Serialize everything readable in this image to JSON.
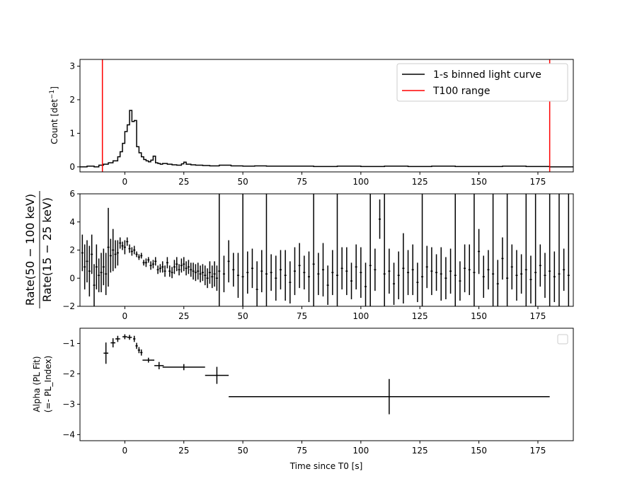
{
  "chart_data": [
    {
      "type": "line",
      "panel": "light-curve",
      "ylabel": "Count [det$^{-1}$]",
      "ylabel_main": "Count [det",
      "ylabel_sup": "−1",
      "ylabel_close": "]",
      "xlim": [
        -19,
        190
      ],
      "ylim": [
        -0.15,
        3.2
      ],
      "xticks": [
        0,
        25,
        50,
        75,
        100,
        125,
        150,
        175
      ],
      "xtick_labels": [
        "0",
        "25",
        "50",
        "75",
        "100",
        "125",
        "150",
        "175"
      ],
      "yticks": [
        0,
        1,
        2,
        3
      ],
      "ytick_labels": [
        "0",
        "1",
        "2",
        "3"
      ],
      "legend_position": "top-right",
      "series": [
        {
          "name": "1-s binned light curve",
          "color": "#000000",
          "x": [
            -19,
            -16,
            -13,
            -11,
            -9,
            -7,
            -5,
            -3,
            -2,
            -1,
            0,
            1,
            2,
            3,
            4,
            5,
            6,
            7,
            8,
            9,
            10,
            11,
            12,
            13,
            14,
            15,
            16,
            18,
            20,
            22,
            24,
            25,
            26,
            28,
            30,
            33,
            36,
            40,
            45,
            50,
            55,
            60,
            70,
            80,
            90,
            100,
            110,
            120,
            130,
            140,
            150,
            160,
            170,
            180,
            190
          ],
          "values": [
            0.0,
            0.02,
            0.0,
            0.05,
            0.08,
            0.12,
            0.18,
            0.3,
            0.45,
            0.7,
            1.05,
            1.25,
            1.68,
            1.35,
            1.38,
            0.6,
            0.42,
            0.3,
            0.22,
            0.18,
            0.15,
            0.2,
            0.32,
            0.12,
            0.1,
            0.08,
            0.1,
            0.08,
            0.06,
            0.05,
            0.09,
            0.14,
            0.08,
            0.06,
            0.05,
            0.04,
            0.03,
            0.05,
            0.03,
            0.02,
            0.03,
            0.02,
            0.02,
            0.01,
            0.02,
            0.01,
            0.02,
            0.01,
            0.02,
            0.01,
            0.01,
            0.02,
            0.01,
            0.0,
            0.0
          ]
        },
        {
          "name": "T100 range",
          "color": "#ff0000",
          "vlines": [
            -9.5,
            180
          ]
        }
      ]
    },
    {
      "type": "scatter",
      "panel": "hardness-ratio",
      "ylabel": "Rate(50 − 100 keV) / Rate(15 − 25 keV)",
      "ylabel_numerator": "Rate(50 − 100 keV)",
      "ylabel_denominator": "Rate(15 − 25 keV)",
      "xlim": [
        -19,
        190
      ],
      "ylim": [
        -2,
        6
      ],
      "xticks": [
        0,
        25,
        50,
        75,
        100,
        125,
        150,
        175
      ],
      "xtick_labels": [
        "0",
        "25",
        "50",
        "75",
        "100",
        "125",
        "150",
        "175"
      ],
      "yticks": [
        -2,
        0,
        2,
        4,
        6
      ],
      "ytick_labels": [
        "−2",
        "0",
        "2",
        "4",
        "6"
      ],
      "series": [
        {
          "name": "",
          "color": "#000000",
          "x": [
            -18,
            -17,
            -16,
            -15,
            -14,
            -13,
            -12,
            -11,
            -10,
            -9,
            -8,
            -7,
            -6,
            -5,
            -4,
            -3,
            -2,
            -1,
            0,
            1,
            2,
            3,
            4,
            5,
            6,
            7,
            8,
            9,
            10,
            11,
            12,
            13,
            14,
            15,
            16,
            17,
            18,
            19,
            20,
            21,
            22,
            23,
            24,
            25,
            26,
            27,
            28,
            29,
            30,
            31,
            32,
            33,
            34,
            35,
            36,
            37,
            38,
            39,
            40,
            42,
            44,
            46,
            48,
            50,
            52,
            54,
            56,
            58,
            60,
            62,
            64,
            66,
            68,
            70,
            72,
            74,
            76,
            78,
            80,
            82,
            84,
            86,
            88,
            90,
            92,
            94,
            96,
            98,
            100,
            102,
            104,
            106,
            108,
            110,
            112,
            114,
            116,
            118,
            120,
            122,
            124,
            126,
            128,
            130,
            132,
            134,
            136,
            138,
            140,
            142,
            144,
            146,
            148,
            150,
            152,
            154,
            156,
            158,
            160,
            162,
            164,
            166,
            168,
            170,
            172,
            174,
            176,
            178,
            180,
            182,
            184,
            186,
            188
          ],
          "values": [
            1.8,
            0.8,
            1.2,
            0.5,
            1.7,
            -0.5,
            0.8,
            0.2,
            0.4,
            0.8,
            0.3,
            2.2,
            1.6,
            2.0,
            1.7,
            1.8,
            2.5,
            2.3,
            2.2,
            2.6,
            2.1,
            1.9,
            2.0,
            1.7,
            1.5,
            1.6,
            1.1,
            1.1,
            1.3,
            0.9,
            1.0,
            1.2,
            0.6,
            0.7,
            0.8,
            0.5,
            1.1,
            0.5,
            0.4,
            0.8,
            1.0,
            0.6,
            0.9,
            1.0,
            0.7,
            0.8,
            0.6,
            0.5,
            0.4,
            0.5,
            0.3,
            0.4,
            0.2,
            0.0,
            0.4,
            0.1,
            0.3,
            0.0,
            0.5,
            0.3,
            1.2,
            0.6,
            0.2,
            0.1,
            0.4,
            0.7,
            -0.8,
            0.5,
            0.3,
            0.4,
            0.0,
            0.6,
            0.2,
            -0.3,
            0.5,
            0.9,
            0.4,
            0.1,
            1.0,
            0.3,
            0.6,
            -0.5,
            0.4,
            0.2,
            0.7,
            0.5,
            -0.2,
            0.8,
            0.4,
            -0.6,
            0.9,
            0.6,
            4.2,
            0.3,
            0.5,
            -0.4,
            0.2,
            0.7,
            0.4,
            0.6,
            -0.3,
            0.1,
            0.8,
            0.5,
            0.4,
            0.3,
            0.0,
            0.5,
            0.2,
            -0.2,
            0.7,
            0.6,
            0.4,
            1.9,
            0.1,
            0.6,
            0.3,
            -0.4,
            1.4,
            0.0,
            0.8,
            0.2,
            0.3,
            0.6,
            -0.1,
            0.4,
            0.9,
            0.2,
            0.5,
            0.1,
            0.3,
            0.6,
            0.2
          ],
          "yerr": [
            1.3,
            1.6,
            1.5,
            1.8,
            1.4,
            1.5,
            1.6,
            1.2,
            1.4,
            1.3,
            1.5,
            2.8,
            1.2,
            1.5,
            1.0,
            0.9,
            0.4,
            0.3,
            0.5,
            0.3,
            0.3,
            0.3,
            0.3,
            0.2,
            0.2,
            0.2,
            0.2,
            0.3,
            0.2,
            0.3,
            0.3,
            0.3,
            0.3,
            0.3,
            0.4,
            0.4,
            0.4,
            0.4,
            0.4,
            0.5,
            0.5,
            0.4,
            0.5,
            0.5,
            0.5,
            0.5,
            0.5,
            0.6,
            0.6,
            0.6,
            0.6,
            0.6,
            0.7,
            0.7,
            0.8,
            0.8,
            0.9,
            0.9,
            6.0,
            1.3,
            1.5,
            1.2,
            1.6,
            7.0,
            1.5,
            1.4,
            2.0,
            1.5,
            6.5,
            1.3,
            1.6,
            1.4,
            1.8,
            1.5,
            1.7,
            1.6,
            1.2,
            1.8,
            7.0,
            1.5,
            1.9,
            1.4,
            1.6,
            7.0,
            1.5,
            1.7,
            1.3,
            1.6,
            1.8,
            1.7,
            7.0,
            1.5,
            1.4,
            7.0,
            1.6,
            1.5,
            1.7,
            2.5,
            1.6,
            1.8,
            1.4,
            7.0,
            1.5,
            1.7,
            1.3,
            1.9,
            1.5,
            1.6,
            7.0,
            1.4,
            1.7,
            1.8,
            7.0,
            1.6,
            1.5,
            1.4,
            7.0,
            1.7,
            1.5,
            7.0,
            1.6,
            1.8,
            1.4,
            7.0,
            1.7,
            7.0,
            1.5,
            1.6,
            7.0,
            1.8,
            7.0,
            1.5,
            7.0
          ]
        }
      ]
    },
    {
      "type": "scatter",
      "panel": "alpha",
      "xlabel": "Time since T0 [s]",
      "ylabel": "Alpha (PL Fit)",
      "ylabel_line2": "(=- PL_Index)",
      "xlim": [
        -19,
        190
      ],
      "ylim": [
        -4.2,
        -0.5
      ],
      "xticks": [
        0,
        25,
        50,
        75,
        100,
        125,
        150,
        175
      ],
      "xtick_labels": [
        "0",
        "25",
        "50",
        "75",
        "100",
        "125",
        "150",
        "175"
      ],
      "yticks": [
        -1,
        -2,
        -3,
        -4
      ],
      "ytick_labels": [
        "−1",
        "−2",
        "−3",
        "−4"
      ],
      "legend_position": "top-right",
      "series": [
        {
          "name": "",
          "color": "#000000",
          "x": [
            -8,
            -5,
            -3,
            0,
            2,
            4,
            5,
            6,
            7,
            10,
            14.5,
            25,
            39,
            112
          ],
          "xerr": [
            1,
            1,
            1,
            1,
            1,
            0.5,
            0.5,
            0.5,
            0.5,
            2.5,
            2,
            9,
            5,
            68
          ],
          "values": [
            -1.32,
            -0.98,
            -0.85,
            -0.78,
            -0.8,
            -0.85,
            -1.08,
            -1.22,
            -1.3,
            -1.55,
            -1.73,
            -1.78,
            -2.05,
            -2.75
          ],
          "yerr": [
            0.35,
            0.15,
            0.1,
            0.08,
            0.08,
            0.1,
            0.1,
            0.1,
            0.1,
            0.08,
            0.12,
            0.1,
            0.28,
            0.58
          ]
        }
      ]
    }
  ]
}
